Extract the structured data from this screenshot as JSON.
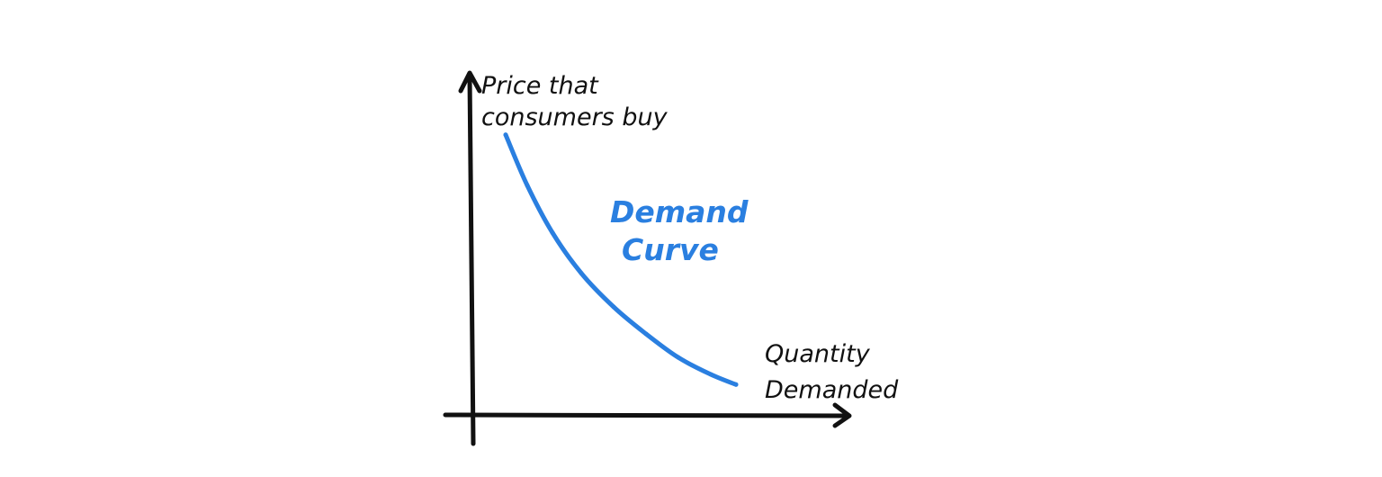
{
  "colors": {
    "axis": "#111111",
    "curve": "#2a7fe0",
    "background": "#ffffff"
  },
  "chart_data": {
    "type": "line",
    "title": "",
    "ylabel_lines": [
      "Price that",
      "consumers buy"
    ],
    "xlabel_lines": [
      "Quantity",
      "Demanded"
    ],
    "xlim": [
      0,
      10
    ],
    "ylim": [
      0,
      10
    ],
    "grid": false,
    "axis_ticks": false,
    "series": [
      {
        "name_lines": [
          "Demand",
          "Curve"
        ],
        "x": [
          0.9,
          1.5,
          2.2,
          3.0,
          3.9,
          4.8,
          5.7,
          6.6,
          7.3
        ],
        "y": [
          8.3,
          6.8,
          5.4,
          4.2,
          3.2,
          2.4,
          1.7,
          1.2,
          0.9
        ]
      }
    ]
  }
}
